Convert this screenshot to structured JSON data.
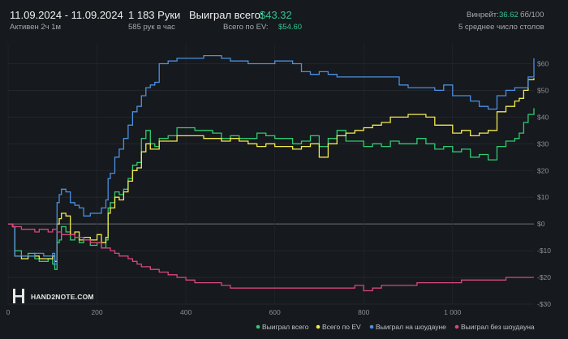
{
  "header": {
    "date_range": "11.09.2024 - 11.09.2024",
    "active": "Активен 2ч 1м",
    "hands": "1 183 Руки",
    "hands_per_hour": "585 рук в час",
    "won_label": "Выиграл всего:",
    "won_value": "$43.32",
    "ev_label": "Всего по EV:",
    "ev_value": "$54.60",
    "winrate_label": "Винрейт:",
    "winrate_value": "36.62",
    "winrate_unit": "бб/100",
    "tables": "5 среднее число столов"
  },
  "logo": {
    "text": "HAND2NOTE.COM"
  },
  "colors": {
    "background": "#16191d",
    "green": "#2ecc71",
    "yellow": "#f2e94e",
    "blue": "#4a90e2",
    "red": "#d9467f",
    "accent": "#34c38f"
  },
  "chart_data": {
    "type": "line",
    "xlim": [
      0,
      1183
    ],
    "ylim": [
      -30,
      65
    ],
    "x_ticks": [
      0,
      200,
      400,
      600,
      800,
      1000
    ],
    "x_tick_labels": [
      "0",
      "200",
      "400",
      "600",
      "800",
      "1 000"
    ],
    "y_ticks": [
      60,
      50,
      40,
      30,
      20,
      10,
      0,
      -10,
      -20,
      -30
    ],
    "y_tick_labels": [
      "$60",
      "$50",
      "$40",
      "$30",
      "$20",
      "$10",
      "$0",
      "-$10",
      "-$20",
      "-$30"
    ],
    "zero_line": true,
    "grid": true,
    "legend_position": "bottom-right",
    "series": [
      {
        "name": "Выиграл всего",
        "color": "#2ecc71",
        "points": [
          [
            0,
            0
          ],
          [
            10,
            -1
          ],
          [
            15,
            -10
          ],
          [
            30,
            -12
          ],
          [
            45,
            -11
          ],
          [
            60,
            -13
          ],
          [
            70,
            -14
          ],
          [
            80,
            -14
          ],
          [
            90,
            -13
          ],
          [
            100,
            -15
          ],
          [
            105,
            -17
          ],
          [
            110,
            -7
          ],
          [
            115,
            -6
          ],
          [
            120,
            -1
          ],
          [
            130,
            -3
          ],
          [
            140,
            -6
          ],
          [
            150,
            -5
          ],
          [
            160,
            -7
          ],
          [
            170,
            -6
          ],
          [
            185,
            -8
          ],
          [
            200,
            -7
          ],
          [
            210,
            -9
          ],
          [
            220,
            -6
          ],
          [
            225,
            6
          ],
          [
            230,
            8
          ],
          [
            240,
            12
          ],
          [
            250,
            11
          ],
          [
            260,
            13
          ],
          [
            270,
            17
          ],
          [
            280,
            22
          ],
          [
            290,
            23
          ],
          [
            300,
            32
          ],
          [
            310,
            35
          ],
          [
            320,
            30
          ],
          [
            330,
            29
          ],
          [
            340,
            32
          ],
          [
            360,
            33
          ],
          [
            380,
            36
          ],
          [
            400,
            36
          ],
          [
            420,
            35
          ],
          [
            440,
            35
          ],
          [
            460,
            34
          ],
          [
            480,
            32
          ],
          [
            500,
            33
          ],
          [
            520,
            32
          ],
          [
            540,
            32
          ],
          [
            560,
            34
          ],
          [
            580,
            33
          ],
          [
            600,
            32
          ],
          [
            620,
            32
          ],
          [
            640,
            30
          ],
          [
            660,
            31
          ],
          [
            680,
            33
          ],
          [
            700,
            29
          ],
          [
            720,
            32
          ],
          [
            740,
            35
          ],
          [
            760,
            31
          ],
          [
            780,
            31
          ],
          [
            800,
            29
          ],
          [
            820,
            30
          ],
          [
            840,
            29
          ],
          [
            860,
            31
          ],
          [
            880,
            30
          ],
          [
            900,
            30
          ],
          [
            920,
            32
          ],
          [
            940,
            30
          ],
          [
            960,
            28
          ],
          [
            980,
            29
          ],
          [
            1000,
            27
          ],
          [
            1020,
            28
          ],
          [
            1040,
            25
          ],
          [
            1060,
            26
          ],
          [
            1080,
            24
          ],
          [
            1100,
            29
          ],
          [
            1120,
            31
          ],
          [
            1140,
            32
          ],
          [
            1150,
            34
          ],
          [
            1160,
            38
          ],
          [
            1170,
            41
          ],
          [
            1183,
            43.32
          ]
        ]
      },
      {
        "name": "Всего по EV",
        "color": "#f2e94e",
        "points": [
          [
            0,
            0
          ],
          [
            10,
            -1
          ],
          [
            15,
            -12
          ],
          [
            30,
            -13
          ],
          [
            45,
            -12
          ],
          [
            60,
            -12
          ],
          [
            70,
            -13
          ],
          [
            80,
            -13
          ],
          [
            90,
            -13
          ],
          [
            100,
            -12
          ],
          [
            105,
            -14
          ],
          [
            110,
            0
          ],
          [
            115,
            2
          ],
          [
            120,
            4
          ],
          [
            130,
            3
          ],
          [
            140,
            -4
          ],
          [
            150,
            -3
          ],
          [
            160,
            -6
          ],
          [
            170,
            -5
          ],
          [
            185,
            -6
          ],
          [
            200,
            -4
          ],
          [
            210,
            -7
          ],
          [
            220,
            -5
          ],
          [
            225,
            4
          ],
          [
            230,
            6
          ],
          [
            240,
            10
          ],
          [
            250,
            9
          ],
          [
            260,
            12
          ],
          [
            270,
            16
          ],
          [
            280,
            20
          ],
          [
            290,
            21
          ],
          [
            300,
            27
          ],
          [
            310,
            30
          ],
          [
            320,
            28
          ],
          [
            330,
            28
          ],
          [
            340,
            31
          ],
          [
            360,
            31
          ],
          [
            380,
            33
          ],
          [
            400,
            33
          ],
          [
            420,
            33
          ],
          [
            440,
            32
          ],
          [
            460,
            32
          ],
          [
            480,
            31
          ],
          [
            500,
            32
          ],
          [
            520,
            31
          ],
          [
            540,
            30
          ],
          [
            560,
            29
          ],
          [
            580,
            30
          ],
          [
            600,
            29
          ],
          [
            620,
            29
          ],
          [
            640,
            28
          ],
          [
            660,
            29
          ],
          [
            680,
            30
          ],
          [
            700,
            25
          ],
          [
            720,
            30
          ],
          [
            740,
            33
          ],
          [
            760,
            34
          ],
          [
            780,
            35
          ],
          [
            800,
            36
          ],
          [
            820,
            37
          ],
          [
            840,
            38
          ],
          [
            860,
            40
          ],
          [
            880,
            40
          ],
          [
            900,
            41
          ],
          [
            920,
            41
          ],
          [
            940,
            40
          ],
          [
            960,
            37
          ],
          [
            980,
            37
          ],
          [
            1000,
            34
          ],
          [
            1020,
            35
          ],
          [
            1040,
            33
          ],
          [
            1060,
            34
          ],
          [
            1080,
            35
          ],
          [
            1100,
            42
          ],
          [
            1120,
            44
          ],
          [
            1140,
            46
          ],
          [
            1150,
            47
          ],
          [
            1160,
            50
          ],
          [
            1170,
            54
          ],
          [
            1183,
            54.6
          ]
        ]
      },
      {
        "name": "Выиграл на шоудауне",
        "color": "#4a90e2",
        "points": [
          [
            0,
            0
          ],
          [
            10,
            -1
          ],
          [
            15,
            -12
          ],
          [
            30,
            -12
          ],
          [
            45,
            -12
          ],
          [
            60,
            -11
          ],
          [
            70,
            -11
          ],
          [
            80,
            -12
          ],
          [
            90,
            -12
          ],
          [
            100,
            -11
          ],
          [
            105,
            -15
          ],
          [
            110,
            8
          ],
          [
            115,
            11
          ],
          [
            120,
            13
          ],
          [
            130,
            12
          ],
          [
            140,
            8
          ],
          [
            150,
            7
          ],
          [
            160,
            6
          ],
          [
            170,
            3
          ],
          [
            185,
            4
          ],
          [
            200,
            4
          ],
          [
            210,
            6
          ],
          [
            220,
            9
          ],
          [
            225,
            17
          ],
          [
            230,
            19
          ],
          [
            240,
            25
          ],
          [
            250,
            28
          ],
          [
            260,
            32
          ],
          [
            270,
            37
          ],
          [
            280,
            42
          ],
          [
            290,
            44
          ],
          [
            300,
            48
          ],
          [
            310,
            51
          ],
          [
            320,
            52
          ],
          [
            330,
            53
          ],
          [
            340,
            60
          ],
          [
            360,
            61
          ],
          [
            380,
            62
          ],
          [
            400,
            62
          ],
          [
            420,
            62
          ],
          [
            440,
            63
          ],
          [
            460,
            63
          ],
          [
            480,
            62
          ],
          [
            500,
            61
          ],
          [
            520,
            61
          ],
          [
            540,
            60
          ],
          [
            560,
            60
          ],
          [
            580,
            60
          ],
          [
            600,
            61
          ],
          [
            620,
            61
          ],
          [
            640,
            60
          ],
          [
            660,
            57
          ],
          [
            680,
            56
          ],
          [
            700,
            57
          ],
          [
            720,
            56
          ],
          [
            740,
            55
          ],
          [
            760,
            55
          ],
          [
            780,
            55
          ],
          [
            800,
            55
          ],
          [
            820,
            55
          ],
          [
            840,
            55
          ],
          [
            860,
            55
          ],
          [
            880,
            52
          ],
          [
            900,
            51
          ],
          [
            920,
            51
          ],
          [
            940,
            51
          ],
          [
            960,
            50
          ],
          [
            980,
            52
          ],
          [
            1000,
            48
          ],
          [
            1020,
            48
          ],
          [
            1040,
            46
          ],
          [
            1060,
            44
          ],
          [
            1080,
            43
          ],
          [
            1100,
            48
          ],
          [
            1120,
            50
          ],
          [
            1140,
            51
          ],
          [
            1150,
            51
          ],
          [
            1160,
            51
          ],
          [
            1170,
            55
          ],
          [
            1183,
            62
          ]
        ]
      },
      {
        "name": "Выиграл без шоудауна",
        "color": "#d9467f",
        "points": [
          [
            0,
            0
          ],
          [
            10,
            -1
          ],
          [
            15,
            -1
          ],
          [
            30,
            -2
          ],
          [
            45,
            -2
          ],
          [
            60,
            -3
          ],
          [
            70,
            -2
          ],
          [
            80,
            -2
          ],
          [
            90,
            -3
          ],
          [
            100,
            -2
          ],
          [
            110,
            -3
          ],
          [
            120,
            -4
          ],
          [
            130,
            -4
          ],
          [
            140,
            -4
          ],
          [
            150,
            -5
          ],
          [
            160,
            -5
          ],
          [
            170,
            -6
          ],
          [
            185,
            -7
          ],
          [
            200,
            -7
          ],
          [
            210,
            -9
          ],
          [
            220,
            -9
          ],
          [
            230,
            -10
          ],
          [
            240,
            -11
          ],
          [
            250,
            -12
          ],
          [
            260,
            -12
          ],
          [
            270,
            -13
          ],
          [
            280,
            -14
          ],
          [
            290,
            -15
          ],
          [
            300,
            -16
          ],
          [
            310,
            -16
          ],
          [
            320,
            -17
          ],
          [
            330,
            -17
          ],
          [
            340,
            -18
          ],
          [
            360,
            -19
          ],
          [
            380,
            -20
          ],
          [
            400,
            -21
          ],
          [
            420,
            -22
          ],
          [
            440,
            -22
          ],
          [
            460,
            -22
          ],
          [
            480,
            -23
          ],
          [
            500,
            -24
          ],
          [
            520,
            -24
          ],
          [
            540,
            -24
          ],
          [
            560,
            -24
          ],
          [
            580,
            -24
          ],
          [
            600,
            -24
          ],
          [
            620,
            -24
          ],
          [
            640,
            -24
          ],
          [
            660,
            -24
          ],
          [
            680,
            -24
          ],
          [
            700,
            -24
          ],
          [
            720,
            -24
          ],
          [
            740,
            -24
          ],
          [
            760,
            -24
          ],
          [
            780,
            -23
          ],
          [
            800,
            -25
          ],
          [
            820,
            -24
          ],
          [
            840,
            -23
          ],
          [
            860,
            -23
          ],
          [
            880,
            -23
          ],
          [
            900,
            -23
          ],
          [
            920,
            -22
          ],
          [
            940,
            -22
          ],
          [
            960,
            -22
          ],
          [
            980,
            -22
          ],
          [
            1000,
            -22
          ],
          [
            1020,
            -21
          ],
          [
            1040,
            -21
          ],
          [
            1060,
            -21
          ],
          [
            1080,
            -21
          ],
          [
            1100,
            -21
          ],
          [
            1120,
            -20
          ],
          [
            1140,
            -20
          ],
          [
            1150,
            -20
          ],
          [
            1160,
            -20
          ],
          [
            1170,
            -20
          ],
          [
            1183,
            -20
          ]
        ]
      }
    ]
  }
}
